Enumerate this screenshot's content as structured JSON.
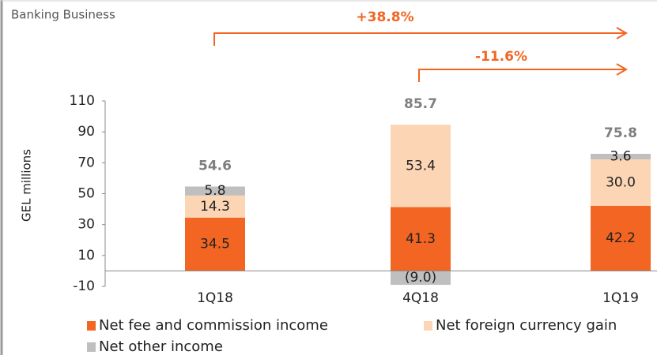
{
  "chart_data": {
    "type": "stacked_bar",
    "title": "Banking Business",
    "y_label": "GEL millions",
    "annotations": [
      "+38.8%",
      "-11.6%"
    ],
    "categories": [
      "1Q18",
      "4Q18",
      "1Q19"
    ],
    "series": [
      {
        "name": "Net fee and commission income",
        "color": "#f26522",
        "values": [
          34.5,
          41.3,
          42.2
        ]
      },
      {
        "name": "Net foreign currency gain",
        "color": "#fcd5b5",
        "values": [
          14.3,
          53.4,
          30.0
        ],
        "value_labels": [
          "14.3",
          "53.4",
          "30.0"
        ]
      },
      {
        "name": "Net other income",
        "color": "#bfbfbf",
        "values": [
          5.8,
          -9.0,
          3.6
        ],
        "value_labels": [
          "5.8",
          "(9.0)",
          "3.6"
        ]
      }
    ],
    "totals": [
      54.6,
      85.7,
      75.8
    ],
    "ylim": [
      -10,
      110
    ],
    "yticks": [
      -10,
      10,
      30,
      50,
      70,
      90,
      110
    ]
  }
}
